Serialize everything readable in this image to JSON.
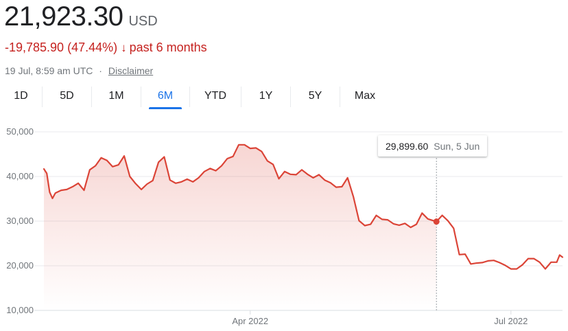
{
  "header": {
    "price": "21,923.30",
    "currency": "USD",
    "change": "-19,785.90 (47.44%)",
    "change_arrow": "↓",
    "period": "past 6 months",
    "timestamp": "19 Jul, 8:59 am UTC",
    "separator": "·",
    "disclaimer": "Disclaimer"
  },
  "tabs": [
    "1D",
    "5D",
    "1M",
    "6M",
    "YTD",
    "1Y",
    "5Y",
    "Max"
  ],
  "active_tab": "6M",
  "tooltip": {
    "value": "29,899.60",
    "date": "Sun, 5 Jun"
  },
  "colors": {
    "line": "#db4437",
    "negative": "#c5221f",
    "accent": "#1a73e8"
  },
  "chart_data": {
    "type": "area",
    "title": "",
    "xlabel": "",
    "ylabel": "",
    "ylim": [
      10000,
      50000
    ],
    "yticks": [
      10000,
      20000,
      30000,
      40000,
      50000
    ],
    "ytick_labels": [
      "10,000",
      "20,000",
      "30,000",
      "40,000",
      "50,000"
    ],
    "xticks": [
      {
        "date": "2022-04-01",
        "label": "Apr 2022"
      },
      {
        "date": "2022-07-01",
        "label": "Jul 2022"
      }
    ],
    "x_start": "2022-01-19",
    "x_end": "2022-07-19",
    "highlight": {
      "date": "2022-06-05",
      "value": 29899.6
    },
    "series": [
      {
        "points": [
          [
            "2022-01-19",
            41700
          ],
          [
            "2022-01-20",
            40700
          ],
          [
            "2022-01-21",
            36500
          ],
          [
            "2022-01-22",
            35100
          ],
          [
            "2022-01-23",
            36300
          ],
          [
            "2022-01-25",
            36900
          ],
          [
            "2022-01-27",
            37100
          ],
          [
            "2022-01-29",
            37700
          ],
          [
            "2022-01-31",
            38500
          ],
          [
            "2022-02-02",
            36900
          ],
          [
            "2022-02-04",
            41500
          ],
          [
            "2022-02-06",
            42400
          ],
          [
            "2022-02-08",
            44200
          ],
          [
            "2022-02-10",
            43600
          ],
          [
            "2022-02-12",
            42200
          ],
          [
            "2022-02-14",
            42600
          ],
          [
            "2022-02-16",
            44600
          ],
          [
            "2022-02-18",
            40000
          ],
          [
            "2022-02-20",
            38400
          ],
          [
            "2022-02-22",
            37100
          ],
          [
            "2022-02-24",
            38300
          ],
          [
            "2022-02-26",
            39100
          ],
          [
            "2022-02-28",
            43200
          ],
          [
            "2022-03-02",
            44400
          ],
          [
            "2022-03-04",
            39200
          ],
          [
            "2022-03-06",
            38500
          ],
          [
            "2022-03-08",
            38800
          ],
          [
            "2022-03-10",
            39400
          ],
          [
            "2022-03-12",
            38800
          ],
          [
            "2022-03-14",
            39700
          ],
          [
            "2022-03-16",
            41100
          ],
          [
            "2022-03-18",
            41800
          ],
          [
            "2022-03-20",
            41300
          ],
          [
            "2022-03-22",
            42400
          ],
          [
            "2022-03-24",
            44000
          ],
          [
            "2022-03-26",
            44500
          ],
          [
            "2022-03-28",
            47100
          ],
          [
            "2022-03-30",
            47100
          ],
          [
            "2022-04-01",
            46300
          ],
          [
            "2022-04-03",
            46400
          ],
          [
            "2022-04-05",
            45600
          ],
          [
            "2022-04-07",
            43500
          ],
          [
            "2022-04-09",
            42700
          ],
          [
            "2022-04-11",
            39500
          ],
          [
            "2022-04-13",
            41100
          ],
          [
            "2022-04-15",
            40500
          ],
          [
            "2022-04-17",
            40400
          ],
          [
            "2022-04-19",
            41500
          ],
          [
            "2022-04-21",
            40500
          ],
          [
            "2022-04-23",
            39700
          ],
          [
            "2022-04-25",
            40400
          ],
          [
            "2022-04-27",
            39200
          ],
          [
            "2022-04-29",
            38600
          ],
          [
            "2022-05-01",
            37600
          ],
          [
            "2022-05-03",
            37700
          ],
          [
            "2022-05-05",
            39700
          ],
          [
            "2022-05-07",
            35500
          ],
          [
            "2022-05-09",
            30100
          ],
          [
            "2022-05-11",
            29000
          ],
          [
            "2022-05-13",
            29300
          ],
          [
            "2022-05-15",
            31300
          ],
          [
            "2022-05-17",
            30400
          ],
          [
            "2022-05-19",
            30300
          ],
          [
            "2022-05-21",
            29400
          ],
          [
            "2022-05-23",
            29100
          ],
          [
            "2022-05-25",
            29500
          ],
          [
            "2022-05-27",
            28600
          ],
          [
            "2022-05-29",
            29300
          ],
          [
            "2022-05-31",
            31800
          ],
          [
            "2022-06-02",
            30500
          ],
          [
            "2022-06-05",
            29899.6
          ],
          [
            "2022-06-07",
            31300
          ],
          [
            "2022-06-09",
            30100
          ],
          [
            "2022-06-11",
            28400
          ],
          [
            "2022-06-13",
            22500
          ],
          [
            "2022-06-15",
            22600
          ],
          [
            "2022-06-17",
            20400
          ],
          [
            "2022-06-19",
            20600
          ],
          [
            "2022-06-21",
            20700
          ],
          [
            "2022-06-23",
            21100
          ],
          [
            "2022-06-25",
            21200
          ],
          [
            "2022-06-27",
            20700
          ],
          [
            "2022-06-29",
            20100
          ],
          [
            "2022-07-01",
            19300
          ],
          [
            "2022-07-03",
            19300
          ],
          [
            "2022-07-05",
            20200
          ],
          [
            "2022-07-07",
            21600
          ],
          [
            "2022-07-09",
            21600
          ],
          [
            "2022-07-11",
            20800
          ],
          [
            "2022-07-13",
            19300
          ],
          [
            "2022-07-15",
            20800
          ],
          [
            "2022-07-17",
            20800
          ],
          [
            "2022-07-18",
            22400
          ],
          [
            "2022-07-19",
            21923.3
          ]
        ]
      }
    ]
  }
}
